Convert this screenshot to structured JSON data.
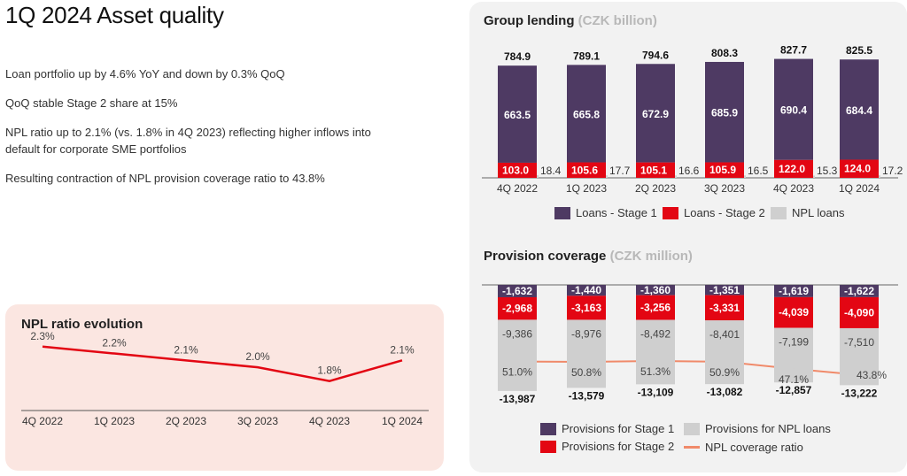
{
  "page": {
    "title": "1Q 2024 Asset quality",
    "bullets": [
      "Loan portfolio up by 4.6% YoY and down by 0.3% QoQ",
      "QoQ stable Stage 2 share at 15%",
      "NPL ratio up to 2.1% (vs. 1.8% in 4Q 2023) reflecting higher inflows into default for corporate SME portfolios",
      "Resulting contraction of NPL provision coverage ratio to 43.8%"
    ]
  },
  "colors": {
    "stage1": "#4e3a63",
    "stage2": "#e30613",
    "npl": "#cfcfcf",
    "line_npl": "#e30613",
    "coverage_line": "#f08a6a"
  },
  "chart_data": [
    {
      "id": "npl_ratio",
      "type": "line",
      "title": "NPL ratio evolution",
      "categories": [
        "4Q 2022",
        "1Q 2023",
        "2Q 2023",
        "3Q 2023",
        "4Q 2023",
        "1Q 2024"
      ],
      "values": [
        2.3,
        2.2,
        2.1,
        2.0,
        1.8,
        2.1
      ],
      "value_labels": [
        "2.3%",
        "2.2%",
        "2.1%",
        "2.0%",
        "1.8%",
        "2.1%"
      ],
      "ylim": [
        1.5,
        2.4
      ]
    },
    {
      "id": "group_lending",
      "type": "bar",
      "title": "Group lending",
      "title_unit": "(CZK billion)",
      "categories": [
        "4Q 2022",
        "1Q 2023",
        "2Q 2023",
        "3Q 2023",
        "4Q 2023",
        "1Q 2024"
      ],
      "totals": [
        "784.9",
        "789.1",
        "794.6",
        "808.3",
        "827.7",
        "825.5"
      ],
      "series": [
        {
          "name": "Loans - Stage 1",
          "values": [
            663.5,
            665.8,
            672.9,
            685.9,
            690.4,
            684.4
          ]
        },
        {
          "name": "Loans - Stage 2",
          "values": [
            103.0,
            105.6,
            105.1,
            105.9,
            122.0,
            124.0
          ]
        },
        {
          "name": "NPL loans",
          "values": [
            18.4,
            17.7,
            16.6,
            16.5,
            15.3,
            17.2
          ]
        }
      ],
      "ylim": [
        0,
        840
      ]
    },
    {
      "id": "provision_coverage",
      "type": "bar",
      "title": "Provision coverage",
      "title_unit": "(CZK million)",
      "categories": [
        "4Q 2022",
        "1Q 2023",
        "2Q 2023",
        "3Q 2023",
        "4Q 2023",
        "1Q 2024"
      ],
      "totals": [
        "-13,987",
        "-13,579",
        "-13,109",
        "-13,082",
        "-12,857",
        "-13,222"
      ],
      "series": [
        {
          "name": "Provisions for Stage 1",
          "values": [
            -1632,
            -1440,
            -1360,
            -1351,
            -1619,
            -1622
          ],
          "labels": [
            "-1,632",
            "-1,440",
            "-1,360",
            "-1,351",
            "-1,619",
            "-1,622"
          ]
        },
        {
          "name": "Provisions for Stage 2",
          "values": [
            -2968,
            -3163,
            -3256,
            -3331,
            -4039,
            -4090
          ],
          "labels": [
            "-2,968",
            "-3,163",
            "-3,256",
            "-3,331",
            "-4,039",
            "-4,090"
          ]
        },
        {
          "name": "Provisions for NPL loans",
          "values": [
            -9386,
            -8976,
            -8492,
            -8401,
            -7199,
            -7510
          ],
          "labels": [
            "-9,386",
            "-8,976",
            "-8,492",
            "-8,401",
            "-7,199",
            "-7,510"
          ]
        },
        {
          "name": "NPL coverage ratio",
          "values": [
            51.0,
            50.8,
            51.3,
            50.9,
            47.1,
            43.8
          ],
          "labels": [
            "51.0%",
            "50.8%",
            "51.3%",
            "50.9%",
            "47.1%",
            "43.8%"
          ]
        }
      ]
    }
  ]
}
